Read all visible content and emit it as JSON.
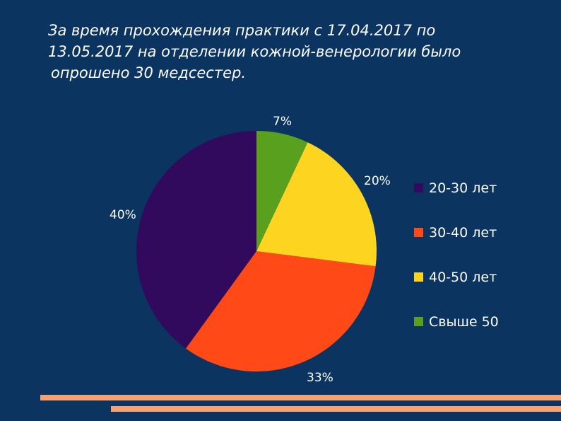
{
  "title": {
    "line1": "За время прохождения практики с 17.04.2017 по",
    "line2": "13.05.2017 на отделении кожной-венерологии было",
    "line3": "опрошено 30 медсестер."
  },
  "colors": {
    "background": "#0b3461",
    "accent_line": "#f7a072"
  },
  "chart_data": {
    "type": "pie",
    "categories": [
      "20-30 лет",
      "30-40 лет",
      "40-50 лет",
      "Свыше 50"
    ],
    "values": [
      40,
      33,
      20,
      7
    ],
    "labels": [
      "40%",
      "33%",
      "20%",
      "7%"
    ],
    "colors": [
      "#310a5e",
      "#ff4a17",
      "#fdd520",
      "#58a01e"
    ],
    "legend_position": "right"
  }
}
